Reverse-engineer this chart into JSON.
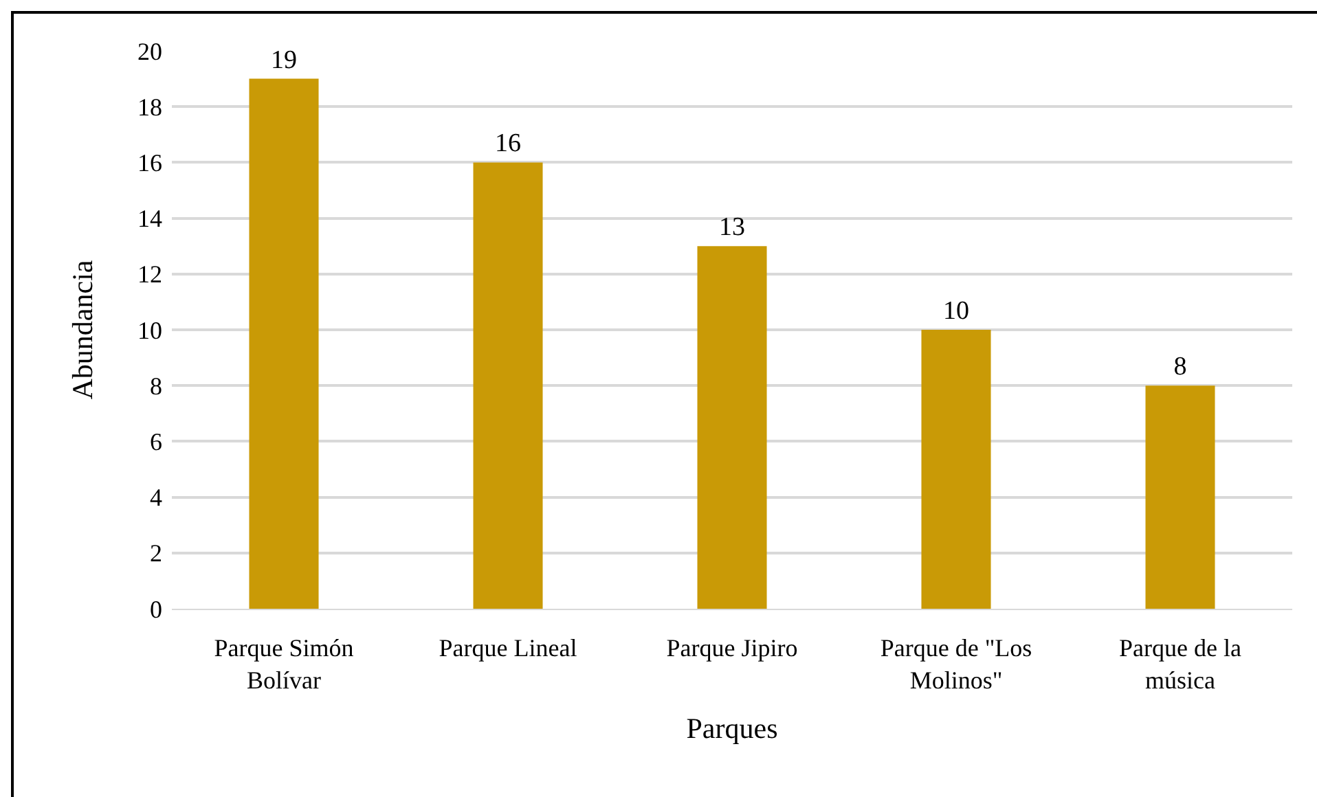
{
  "chart_data": {
    "type": "bar",
    "xlabel": "Parques",
    "ylabel": "Abundancia",
    "categories": [
      "Parque Simón Bolívar",
      "Parque Lineal",
      "Parque Jipiro",
      "Parque de \"Los Molinos\"",
      "Parque de la música"
    ],
    "values": [
      19,
      16,
      13,
      10,
      8
    ],
    "color": "#c99a06",
    "ylim": [
      0,
      20
    ],
    "yticks": [
      0,
      2,
      4,
      6,
      8,
      10,
      12,
      14,
      16,
      18,
      20
    ],
    "grid": "y",
    "data_labels": true
  }
}
